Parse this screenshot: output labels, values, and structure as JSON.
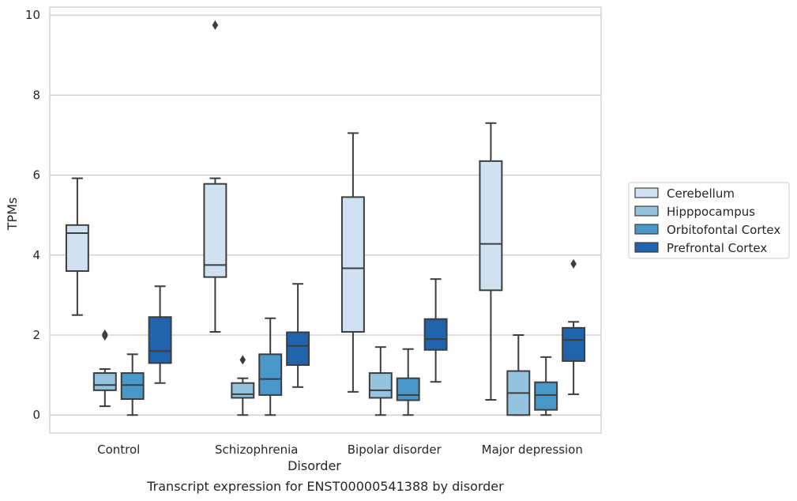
{
  "caption": "Transcript expression for ENST00000541388 by disorder",
  "chart_data": {
    "type": "box",
    "xlabel": "Disorder",
    "ylabel": "TPMs",
    "ylim": [
      -0.45,
      10.2
    ],
    "yticks": [
      0,
      2,
      4,
      6,
      8,
      10
    ],
    "grid": "horizontal",
    "legend_position": "right",
    "categories": [
      "Control",
      "Schizophrenia",
      "Bipolar disorder",
      "Major depression"
    ],
    "series": [
      {
        "name": "Cerebellum",
        "color": "#d0e1f2",
        "boxes": [
          {
            "whislo": 2.5,
            "q1": 3.6,
            "med": 4.55,
            "q3": 4.75,
            "whishi": 5.92,
            "fliers": []
          },
          {
            "whislo": 2.08,
            "q1": 3.45,
            "med": 3.75,
            "q3": 5.78,
            "whishi": 5.92,
            "fliers": [
              9.75
            ]
          },
          {
            "whislo": 0.58,
            "q1": 2.08,
            "med": 3.67,
            "q3": 5.45,
            "whishi": 7.05,
            "fliers": []
          },
          {
            "whislo": 0.38,
            "q1": 3.12,
            "med": 4.28,
            "q3": 6.35,
            "whishi": 7.3,
            "fliers": []
          }
        ]
      },
      {
        "name": "Hipppocampus",
        "color": "#94c4df",
        "boxes": [
          {
            "whislo": 0.22,
            "q1": 0.62,
            "med": 0.75,
            "q3": 1.05,
            "whishi": 1.15,
            "fliers": [
              2.02,
              1.98
            ]
          },
          {
            "whislo": 0.0,
            "q1": 0.43,
            "med": 0.52,
            "q3": 0.8,
            "whishi": 0.92,
            "fliers": [
              1.38
            ]
          },
          {
            "whislo": 0.0,
            "q1": 0.43,
            "med": 0.62,
            "q3": 1.05,
            "whishi": 1.7,
            "fliers": []
          },
          {
            "whislo": 0.0,
            "q1": 0.0,
            "med": 0.55,
            "q3": 1.1,
            "whishi": 2.0,
            "fliers": []
          }
        ]
      },
      {
        "name": "Orbitofontal Cortex",
        "color": "#4a98c9",
        "boxes": [
          {
            "whislo": 0.0,
            "q1": 0.4,
            "med": 0.75,
            "q3": 1.05,
            "whishi": 1.52,
            "fliers": []
          },
          {
            "whislo": 0.0,
            "q1": 0.5,
            "med": 0.9,
            "q3": 1.52,
            "whishi": 2.42,
            "fliers": []
          },
          {
            "whislo": 0.0,
            "q1": 0.37,
            "med": 0.5,
            "q3": 0.92,
            "whishi": 1.65,
            "fliers": []
          },
          {
            "whislo": 0.0,
            "q1": 0.13,
            "med": 0.5,
            "q3": 0.82,
            "whishi": 1.45,
            "fliers": []
          }
        ]
      },
      {
        "name": "Prefrontal Cortex",
        "color": "#2164ab",
        "boxes": [
          {
            "whislo": 0.8,
            "q1": 1.3,
            "med": 1.6,
            "q3": 2.45,
            "whishi": 3.22,
            "fliers": []
          },
          {
            "whislo": 0.7,
            "q1": 1.25,
            "med": 1.73,
            "q3": 2.07,
            "whishi": 3.28,
            "fliers": []
          },
          {
            "whislo": 0.83,
            "q1": 1.63,
            "med": 1.9,
            "q3": 2.4,
            "whishi": 3.4,
            "fliers": []
          },
          {
            "whislo": 0.52,
            "q1": 1.35,
            "med": 1.88,
            "q3": 2.18,
            "whishi": 2.33,
            "fliers": [
              3.78
            ]
          }
        ]
      }
    ]
  }
}
